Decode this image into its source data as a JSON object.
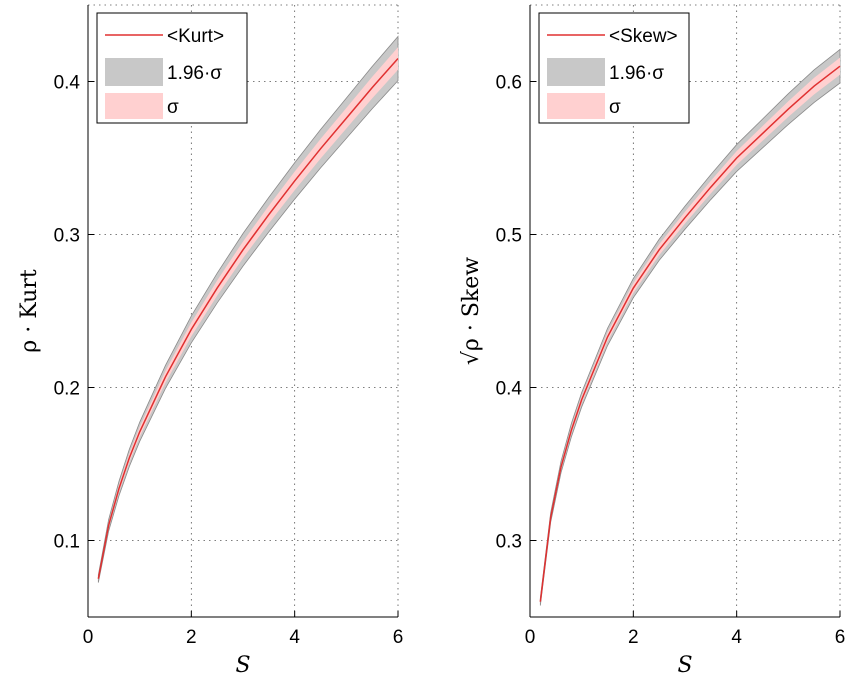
{
  "chart_data": [
    {
      "type": "line",
      "xlabel": "S",
      "ylabel": "ρ · Kurt",
      "xlim": [
        0,
        6
      ],
      "ylim": [
        0.05,
        0.45
      ],
      "xticks": [
        0,
        2,
        4,
        6
      ],
      "yticks": [
        0.1,
        0.2,
        0.3,
        0.4
      ],
      "xtick_labels": [
        "0",
        "2",
        "4",
        "6"
      ],
      "ytick_labels": [
        "0.1",
        "0.2",
        "0.3",
        "0.4"
      ],
      "grid": true,
      "legend_position": "top-left",
      "legend": [
        "<Kurt>",
        "1.96·σ",
        "σ"
      ],
      "series": [
        {
          "name": "<Kurt>",
          "x": [
            0.2,
            0.4,
            0.6,
            0.8,
            1.0,
            1.5,
            2.0,
            2.5,
            3.0,
            3.5,
            4.0,
            4.5,
            5.0,
            5.5,
            6.0
          ],
          "y": [
            0.075,
            0.11,
            0.134,
            0.154,
            0.171,
            0.207,
            0.238,
            0.265,
            0.29,
            0.313,
            0.335,
            0.356,
            0.376,
            0.396,
            0.415
          ],
          "sigma": [
            0.0008,
            0.0012,
            0.0015,
            0.0018,
            0.002,
            0.0024,
            0.0028,
            0.0031,
            0.0034,
            0.0036,
            0.0038,
            0.004,
            0.0042,
            0.0044,
            0.0046
          ]
        }
      ],
      "colors": {
        "line": "#e03030",
        "band_196": "#c8c8c8",
        "band_sigma": "#ffd0d0"
      }
    },
    {
      "type": "line",
      "xlabel": "S",
      "ylabel": "√ρ · Skew",
      "xlim": [
        0,
        6
      ],
      "ylim": [
        0.25,
        0.65
      ],
      "xticks": [
        0,
        2,
        4,
        6
      ],
      "yticks": [
        0.3,
        0.4,
        0.5,
        0.6
      ],
      "xtick_labels": [
        "0",
        "2",
        "4",
        "6"
      ],
      "ytick_labels": [
        "0.3",
        "0.4",
        "0.5",
        "0.6"
      ],
      "grid": true,
      "legend_position": "top-left",
      "legend": [
        "<Skew>",
        "1.96·σ",
        "σ"
      ],
      "series": [
        {
          "name": "<Skew>",
          "x": [
            0.2,
            0.4,
            0.6,
            0.8,
            1.0,
            1.5,
            2.0,
            2.5,
            3.0,
            3.5,
            4.0,
            4.5,
            5.0,
            5.5,
            6.0
          ],
          "y": [
            0.26,
            0.315,
            0.348,
            0.372,
            0.392,
            0.433,
            0.465,
            0.49,
            0.511,
            0.531,
            0.55,
            0.566,
            0.582,
            0.597,
            0.61
          ],
          "sigma": [
            0.0008,
            0.001,
            0.0012,
            0.0014,
            0.0015,
            0.0018,
            0.002,
            0.0022,
            0.0024,
            0.0026,
            0.0028,
            0.003,
            0.0032,
            0.0034,
            0.0035
          ]
        }
      ],
      "colors": {
        "line": "#e03030",
        "band_196": "#c8c8c8",
        "band_sigma": "#ffd0d0"
      }
    }
  ]
}
